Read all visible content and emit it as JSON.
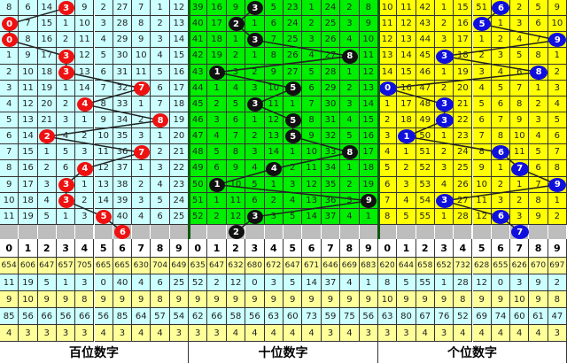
{
  "header_digits": [
    "0",
    "1",
    "2",
    "3",
    "4",
    "5",
    "6",
    "7",
    "8",
    "9"
  ],
  "panels": [
    {
      "label": "百位数字",
      "bg": "#ccffff",
      "ball_color": "#ee1111",
      "rows": [
        [
          8,
          6,
          14,
          3,
          9,
          2,
          27,
          7,
          1,
          12
        ],
        [
          0,
          7,
          15,
          1,
          10,
          3,
          28,
          8,
          2,
          13
        ],
        [
          0,
          8,
          16,
          2,
          11,
          4,
          29,
          9,
          3,
          14
        ],
        [
          1,
          9,
          17,
          3,
          12,
          5,
          30,
          10,
          4,
          15
        ],
        [
          2,
          10,
          18,
          3,
          13,
          6,
          31,
          11,
          5,
          16
        ],
        [
          3,
          11,
          19,
          1,
          14,
          7,
          32,
          7,
          6,
          17
        ],
        [
          4,
          12,
          20,
          2,
          4,
          8,
          33,
          1,
          7,
          18
        ],
        [
          5,
          13,
          21,
          3,
          1,
          9,
          34,
          2,
          8,
          19
        ],
        [
          6,
          14,
          2,
          4,
          2,
          10,
          35,
          3,
          1,
          20
        ],
        [
          7,
          15,
          1,
          5,
          3,
          11,
          36,
          7,
          2,
          21
        ],
        [
          8,
          16,
          2,
          6,
          4,
          12,
          37,
          1,
          3,
          22
        ],
        [
          9,
          17,
          3,
          3,
          1,
          13,
          38,
          2,
          4,
          23
        ],
        [
          10,
          18,
          4,
          3,
          2,
          14,
          39,
          3,
          5,
          24
        ],
        [
          11,
          19,
          5,
          1,
          3,
          5,
          40,
          4,
          6,
          25
        ]
      ],
      "balls": [
        3,
        0,
        0,
        3,
        3,
        7,
        4,
        8,
        2,
        7,
        4,
        3,
        3,
        5,
        6
      ],
      "stats": [
        [
          654,
          606,
          647,
          657,
          705,
          665,
          665,
          630,
          704,
          649
        ],
        [
          11,
          19,
          5,
          1,
          3,
          0,
          40,
          4,
          6,
          25
        ],
        [
          9,
          10,
          9,
          9,
          8,
          9,
          9,
          9,
          8,
          9
        ],
        [
          85,
          56,
          66,
          56,
          66,
          56,
          85,
          64,
          57,
          54
        ],
        [
          4,
          3,
          3,
          3,
          3,
          4,
          3,
          4,
          4,
          3
        ]
      ]
    },
    {
      "label": "十位数字",
      "bg": "#00ee00",
      "ball_color": "#111111",
      "rows": [
        [
          39,
          16,
          9,
          3,
          5,
          23,
          1,
          24,
          2,
          8
        ],
        [
          40,
          17,
          2,
          1,
          6,
          24,
          2,
          25,
          3,
          9
        ],
        [
          41,
          18,
          1,
          3,
          7,
          25,
          3,
          26,
          4,
          10
        ],
        [
          42,
          19,
          2,
          1,
          8,
          26,
          4,
          27,
          8,
          11
        ],
        [
          43,
          1,
          3,
          2,
          9,
          27,
          5,
          28,
          1,
          12
        ],
        [
          44,
          1,
          4,
          3,
          10,
          5,
          6,
          29,
          2,
          13
        ],
        [
          45,
          2,
          5,
          3,
          11,
          1,
          7,
          30,
          3,
          14
        ],
        [
          46,
          3,
          6,
          1,
          12,
          5,
          8,
          31,
          4,
          15
        ],
        [
          47,
          4,
          7,
          2,
          13,
          5,
          9,
          32,
          5,
          16
        ],
        [
          48,
          5,
          8,
          3,
          14,
          1,
          10,
          33,
          8,
          17
        ],
        [
          49,
          6,
          9,
          4,
          4,
          2,
          11,
          34,
          1,
          18
        ],
        [
          50,
          1,
          10,
          5,
          1,
          3,
          12,
          35,
          2,
          19
        ],
        [
          51,
          1,
          11,
          6,
          2,
          4,
          13,
          36,
          3,
          9
        ],
        [
          52,
          2,
          12,
          3,
          3,
          5,
          14,
          37,
          4,
          1
        ]
      ],
      "balls": [
        3,
        2,
        3,
        8,
        1,
        5,
        3,
        5,
        5,
        8,
        4,
        1,
        9,
        3,
        2
      ],
      "stats": [
        [
          635,
          647,
          632,
          680,
          672,
          647,
          671,
          646,
          669,
          683
        ],
        [
          52,
          2,
          12,
          0,
          3,
          5,
          14,
          37,
          4,
          1
        ],
        [
          9,
          9,
          9,
          9,
          9,
          9,
          9,
          9,
          9,
          9
        ],
        [
          62,
          66,
          58,
          56,
          63,
          60,
          73,
          59,
          75,
          56
        ],
        [
          3,
          3,
          4,
          4,
          4,
          4,
          4,
          3,
          4,
          3
        ]
      ]
    },
    {
      "label": "个位数字",
      "bg": "#ffff00",
      "ball_color": "#1010dd",
      "rows": [
        [
          10,
          11,
          42,
          1,
          15,
          51,
          6,
          2,
          5,
          9
        ],
        [
          11,
          12,
          43,
          2,
          16,
          5,
          1,
          3,
          6,
          10
        ],
        [
          12,
          13,
          44,
          3,
          17,
          1,
          2,
          4,
          7,
          9
        ],
        [
          13,
          14,
          45,
          3,
          18,
          2,
          3,
          5,
          8,
          1
        ],
        [
          14,
          15,
          46,
          1,
          19,
          3,
          4,
          6,
          8,
          2
        ],
        [
          0,
          16,
          47,
          2,
          20,
          4,
          5,
          7,
          1,
          3
        ],
        [
          1,
          17,
          48,
          3,
          21,
          5,
          6,
          8,
          2,
          4
        ],
        [
          2,
          18,
          49,
          3,
          22,
          6,
          7,
          9,
          3,
          5
        ],
        [
          3,
          1,
          50,
          1,
          23,
          7,
          8,
          10,
          4,
          6
        ],
        [
          4,
          1,
          51,
          2,
          24,
          8,
          6,
          11,
          5,
          7
        ],
        [
          5,
          2,
          52,
          3,
          25,
          9,
          1,
          7,
          6,
          8
        ],
        [
          6,
          3,
          53,
          4,
          26,
          10,
          2,
          1,
          7,
          9
        ],
        [
          7,
          4,
          54,
          3,
          27,
          11,
          3,
          2,
          8,
          1
        ],
        [
          8,
          5,
          55,
          1,
          28,
          12,
          6,
          3,
          9,
          2
        ]
      ],
      "balls": [
        6,
        5,
        9,
        3,
        8,
        0,
        3,
        3,
        1,
        6,
        7,
        9,
        3,
        6,
        7
      ],
      "stats": [
        [
          620,
          644,
          658,
          652,
          732,
          628,
          655,
          626,
          670,
          697
        ],
        [
          8,
          5,
          55,
          1,
          28,
          12,
          0,
          3,
          9,
          2
        ],
        [
          10,
          9,
          9,
          9,
          8,
          9,
          9,
          10,
          9,
          8
        ],
        [
          63,
          80,
          67,
          76,
          52,
          69,
          74,
          60,
          61,
          47
        ],
        [
          3,
          3,
          4,
          3,
          4,
          4,
          4,
          4,
          4,
          3
        ]
      ]
    }
  ],
  "stats_colors": [
    "#ffff99",
    "#ccffff",
    "#ffff99",
    "#ccffff",
    "#ffff99"
  ]
}
